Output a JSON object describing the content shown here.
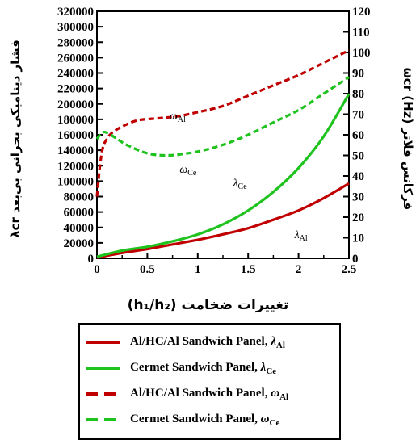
{
  "chart_data": {
    "type": "line",
    "xlabel": "تغییرات ضخامت (h₁/h₂)",
    "ylabel_left": "فشار دینامیکی بحرانی بی‌بعد λcr",
    "ylabel_right": "فرکانس فلاتر (Hz) ωcr",
    "xlim": [
      0,
      2.5
    ],
    "ylim_left": [
      0,
      320000
    ],
    "ylim_right": [
      0,
      120
    ],
    "x_ticks": [
      "0",
      "0.5",
      "1",
      "1.5",
      "2",
      "2.5"
    ],
    "y_ticks_left": [
      "0",
      "20000",
      "40000",
      "60000",
      "80000",
      "100000",
      "120000",
      "140000",
      "160000",
      "180000",
      "200000",
      "220000",
      "240000",
      "260000",
      "280000",
      "300000",
      "320000"
    ],
    "y_ticks_right": [
      "0",
      "10",
      "20",
      "30",
      "40",
      "50",
      "60",
      "70",
      "80",
      "90",
      "100",
      "110",
      "120"
    ],
    "grid": false,
    "series": [
      {
        "name": "Al/HC/Al Sandwich Panel, λAl",
        "axis": "left",
        "style": "solid",
        "color": "#c00000",
        "x": [
          0,
          0.25,
          0.5,
          0.75,
          1.0,
          1.25,
          1.5,
          1.75,
          2.0,
          2.25,
          2.5
        ],
        "y": [
          1000,
          7000,
          12000,
          18000,
          24000,
          31000,
          39000,
          50000,
          62000,
          78000,
          97000
        ]
      },
      {
        "name": "Cermet Sandwich Panel, λCe",
        "axis": "left",
        "style": "solid",
        "color": "#1ec31e",
        "x": [
          0,
          0.25,
          0.5,
          0.75,
          1.0,
          1.25,
          1.5,
          1.75,
          2.0,
          2.25,
          2.5
        ],
        "y": [
          2000,
          10000,
          15000,
          22000,
          31000,
          44000,
          62000,
          86000,
          117000,
          158000,
          213000
        ]
      },
      {
        "name": "Al/HC/Al Sandwich Panel, ωAl",
        "axis": "right",
        "style": "dashed",
        "color": "#c00000",
        "x": [
          0,
          0.03,
          0.06,
          0.1,
          0.15,
          0.25,
          0.4,
          0.6,
          0.8,
          1.0,
          1.25,
          1.5,
          1.75,
          2.0,
          2.25,
          2.5
        ],
        "y": [
          30,
          45,
          54,
          58,
          61,
          64,
          67,
          68,
          69,
          71,
          74,
          79,
          84,
          89,
          95,
          101
        ]
      },
      {
        "name": "Cermet Sandwich Panel, ωCe",
        "axis": "right",
        "style": "dashed",
        "color": "#1ec31e",
        "x": [
          0,
          0.05,
          0.1,
          0.2,
          0.3,
          0.5,
          0.7,
          0.9,
          1.1,
          1.3,
          1.5,
          1.75,
          2.0,
          2.25,
          2.5
        ],
        "y": [
          58,
          61,
          61,
          58,
          55,
          51,
          50,
          51,
          53,
          56,
          60,
          66,
          72,
          80,
          88
        ]
      }
    ],
    "annotations": [
      {
        "text": "ω",
        "sub": "Al",
        "x": 0.72,
        "y": 67.5,
        "axis": "right"
      },
      {
        "text": "ω",
        "sub": "Ce",
        "x": 0.82,
        "y": 41.5,
        "axis": "right"
      },
      {
        "text": "λ",
        "sub": "Ce",
        "x": 1.35,
        "y": 93000,
        "axis": "left"
      },
      {
        "text": "λ",
        "sub": "Al",
        "x": 1.96,
        "y": 26000,
        "axis": "left"
      }
    ],
    "legend": {
      "position": "bottom",
      "entries": [
        {
          "text": "Al/HC/Al Sandwich Panel, ",
          "symbol": "λ",
          "sub": "Al",
          "style": "solid",
          "color": "#c00000"
        },
        {
          "text": "Cermet Sandwich Panel, ",
          "symbol": "λ",
          "sub": "Ce",
          "style": "solid",
          "color": "#1ec31e"
        },
        {
          "text": "Al/HC/Al Sandwich Panel, ",
          "symbol": "ω",
          "sub": "Al",
          "style": "dashed",
          "color": "#c00000"
        },
        {
          "text": "Cermet Sandwich Panel, ",
          "symbol": "ω",
          "sub": "Ce",
          "style": "dashed",
          "color": "#1ec31e"
        }
      ]
    }
  }
}
